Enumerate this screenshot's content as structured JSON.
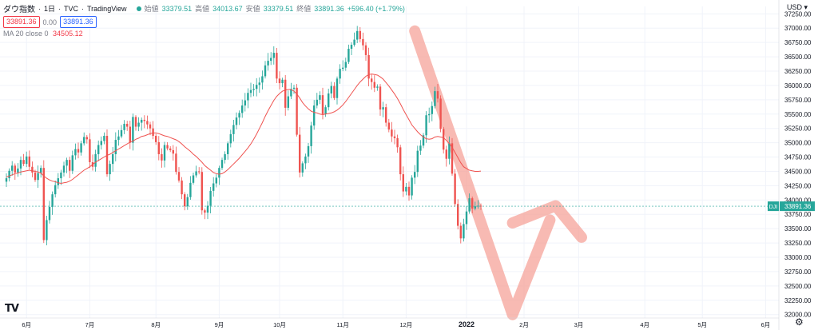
{
  "header": {
    "symbol": "ダウ指数",
    "interval": "1日",
    "source": "TVC",
    "provider": "TradingView",
    "open_label": "始値",
    "open": "33379.51",
    "high_label": "高値",
    "high": "34013.67",
    "low_label": "安値",
    "low": "33379.51",
    "close_label": "終値",
    "close": "33891.36",
    "change": "+596.40 (+1.79%)"
  },
  "price_boxes": {
    "sell": "33891.36",
    "spread": "0.00",
    "buy": "33891.36"
  },
  "indicator": {
    "name": "MA 20 close 0",
    "value": "34505.12"
  },
  "axis": {
    "currency": "USD",
    "ticker_tag": "DJI",
    "last_price": "33891.36"
  },
  "logo": "TV",
  "icons": [
    "settings-gear-icon",
    "currency-dropdown-icon"
  ],
  "colors": {
    "up": "#26a69a",
    "down": "#ef5350",
    "ma": "#ef5350",
    "annotation": "#f5a39a",
    "grid": "#f0f3fa"
  },
  "chart_data": {
    "type": "candlestick",
    "y_ticks": [
      "32000.00",
      "32250.00",
      "32500.00",
      "32750.00",
      "33000.00",
      "33250.00",
      "33500.00",
      "33750.00",
      "34000.00",
      "34250.00",
      "34500.00",
      "34750.00",
      "35000.00",
      "35250.00",
      "35500.00",
      "35750.00",
      "36000.00",
      "36250.00",
      "36500.00",
      "36750.00",
      "37000.00",
      "37250.00"
    ],
    "ylim": [
      31940,
      37380
    ],
    "x_tick_labels": [
      "6月",
      "7月",
      "8月",
      "9月",
      "10月",
      "11月",
      "12月",
      "2022",
      "2月",
      "3月",
      "4月",
      "5月",
      "6月"
    ],
    "x_tick_index": [
      7,
      29,
      52,
      74,
      95,
      117,
      139,
      160,
      180,
      199,
      222,
      242,
      264
    ],
    "closes": [
      34380,
      34510,
      34600,
      34480,
      34550,
      34700,
      34630,
      34760,
      34580,
      34480,
      34350,
      34470,
      34560,
      33300,
      33650,
      33880,
      34100,
      34260,
      34380,
      34480,
      34600,
      34700,
      34510,
      34780,
      34890,
      34830,
      34990,
      35100,
      35060,
      34660,
      34580,
      34800,
      34960,
      35030,
      35120,
      34450,
      34630,
      34800,
      35050,
      35110,
      35220,
      35330,
      35280,
      35000,
      35450,
      35280,
      35350,
      35400,
      35380,
      35320,
      35250,
      35120,
      35010,
      34800,
      34690,
      34960,
      34900,
      34870,
      34810,
      34490,
      34340,
      34100,
      33890,
      34050,
      34300,
      34430,
      34500,
      34490,
      33820,
      33780,
      33900,
      34160,
      34290,
      34390,
      34560,
      34700,
      34800,
      34990,
      35150,
      35310,
      35440,
      35520,
      35650,
      35740,
      35870,
      35920,
      35940,
      36010,
      36050,
      36160,
      36350,
      36430,
      36480,
      36570,
      36120,
      36040,
      36100,
      35610,
      35810,
      35940,
      35960,
      35140,
      34480,
      34640,
      34760,
      34940,
      35300,
      35650,
      35750,
      35830,
      35500,
      35620,
      35860,
      35990,
      35780,
      36120,
      36290,
      36310,
      36410,
      36640,
      36710,
      36800,
      36950,
      36810,
      36700,
      36530,
      36120,
      36060,
      35960,
      35980,
      35580,
      35620,
      35350,
      35230,
      35110,
      35080,
      34920,
      34450,
      34150,
      34230,
      34080,
      34390,
      34490,
      34860,
      34950,
      35130,
      35480,
      35500,
      35640,
      35900,
      35770,
      35240,
      34880,
      34720,
      34990,
      34460,
      33930,
      33550,
      33330,
      33580,
      33800,
      34030,
      33850,
      33890,
      33900,
      33890
    ],
    "ma20": [
      34400,
      34420,
      34440,
      34460,
      34470,
      34490,
      34500,
      34510,
      34520,
      34510,
      34500,
      34490,
      34470,
      34420,
      34380,
      34350,
      34330,
      34320,
      34300,
      34290,
      34300,
      34310,
      34330,
      34360,
      34400,
      34440,
      34480,
      34520,
      34550,
      34580,
      34620,
      34660,
      34690,
      34720,
      34750,
      34780,
      34800,
      34830,
      34860,
      34890,
      34920,
      34950,
      34980,
      35010,
      35030,
      35060,
      35080,
      35110,
      35120,
      35140,
      35160,
      35170,
      35170,
      35160,
      35140,
      35120,
      35110,
      35090,
      35070,
      35050,
      35020,
      34980,
      34930,
      34890,
      34850,
      34800,
      34760,
      34710,
      34660,
      34600,
      34560,
      34520,
      34480,
      34460,
      34450,
      34460,
      34490,
      34530,
      34580,
      34630,
      34680,
      34730,
      34790,
      34850,
      34910,
      34980,
      35060,
      35150,
      35250,
      35350,
      35460,
      35560,
      35650,
      35740,
      35810,
      35860,
      35900,
      35920,
      35930,
      35930,
      35900,
      35850,
      35780,
      35700,
      35640,
      35590,
      35550,
      35530,
      35520,
      35500,
      35490,
      35500,
      35510,
      35520,
      35540,
      35570,
      35610,
      35660,
      35720,
      35790,
      35860,
      35930,
      36000,
      36060,
      36110,
      36160,
      36190,
      36200,
      36190,
      36180,
      36150,
      36110,
      36050,
      35990,
      35920,
      35850,
      35770,
      35680,
      35580,
      35490,
      35400,
      35310,
      35250,
      35190,
      35140,
      35100,
      35070,
      35060,
      35070,
      35100,
      35110,
      35100,
      35090,
      35040,
      34990,
      34920,
      34830,
      34740,
      34650,
      34580,
      34550,
      34520,
      34510,
      34500,
      34500,
      34505
    ],
    "annotation": {
      "shape": "down-up arrow",
      "points": [
        {
          "i": 142,
          "v": 36950
        },
        {
          "i": 176,
          "v": 32000
        },
        {
          "i": 189,
          "v": 33650
        }
      ],
      "tail": [
        {
          "i": 176,
          "v": 33600
        },
        {
          "i": 191,
          "v": 33900
        },
        {
          "i": 200,
          "v": 33350
        }
      ]
    }
  }
}
